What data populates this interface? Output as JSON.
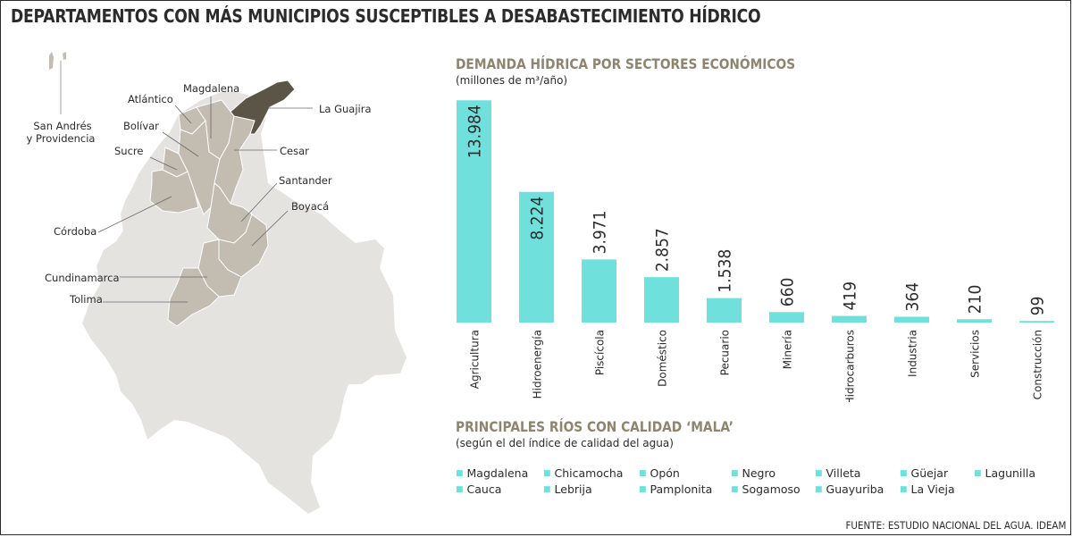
{
  "title": "DEPARTAMENTOS CON MÁS MUNICIPIOS SUSCEPTIBLES A DESABASTECIMIENTO HÍDRICO",
  "colors": {
    "bar": "#6fe0dc",
    "map_country": "#e4e3e0",
    "map_region": "#c2bcb1",
    "map_highlight": "#5b5548",
    "section_title": "#8e8570"
  },
  "map": {
    "labels": {
      "san_andres": [
        "San Andrés",
        "y Providencia"
      ],
      "atlantico": "Atlántico",
      "magdalena": "Magdalena",
      "la_guajira": "La Guajira",
      "bolivar": "Bolívar",
      "cesar": "Cesar",
      "sucre": "Sucre",
      "santander": "Santander",
      "boyaca": "Boyacá",
      "cordoba": "Córdoba",
      "cundinamarca": "Cundinamarca",
      "tolima": "Tolima"
    }
  },
  "chart_data": {
    "type": "bar",
    "title": "DEMANDA HÍDRICA POR SECTORES ECONÓMICOS",
    "subtitle": "(millones de m³/año)",
    "categories": [
      "Agricultura",
      "Hidroenergía",
      "Piscícola",
      "Doméstico",
      "Pecuario",
      "Minería",
      "Hidrocarburos",
      "Industria",
      "Servicios",
      "Construcción"
    ],
    "values": [
      13984,
      8224,
      3971,
      2857,
      1538,
      660,
      419,
      364,
      210,
      99
    ],
    "value_labels": [
      "13.984",
      "8.224",
      "3.971",
      "2.857",
      "1.538",
      "660",
      "419",
      "364",
      "210",
      "99"
    ],
    "ylim": [
      0,
      14000
    ],
    "grid": false
  },
  "rivers": {
    "title": "PRINCIPALES RÍOS CON CALIDAD ‘MALA’",
    "subtitle": "(según el del índice de calidad del agua)",
    "items": [
      "Magdalena",
      "Chicamocha",
      "Opón",
      "Negro",
      "Villeta",
      "Güejar",
      "Lagunilla",
      "Cauca",
      "Lebrija",
      "Pamplonita",
      "Sogamoso",
      "Guayuriba",
      "La Vieja"
    ]
  },
  "source": "FUENTE: ESTUDIO NACIONAL DEL AGUA. IDEAM"
}
